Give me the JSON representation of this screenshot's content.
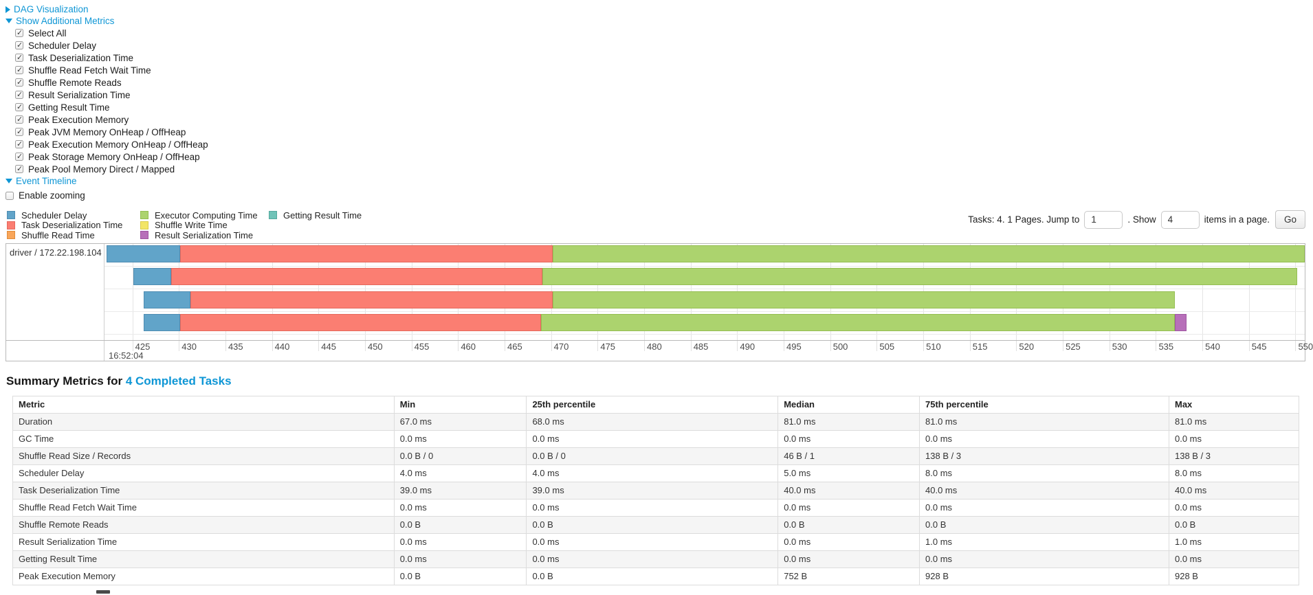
{
  "colors": {
    "link": "#0e96d5",
    "scheduler_delay": "#61a4c9",
    "scheduler_delay_border": "#4e8cb2",
    "task_deserialization": "#fb7e72",
    "task_deserialization_border": "#e5685c",
    "shuffle_read": "#f9a65a",
    "shuffle_read_border": "#e08c3c",
    "executor_computing": "#acd36e",
    "executor_computing_border": "#94be52",
    "shuffle_write": "#f2e566",
    "shuffle_write_border": "#d9cc4c",
    "result_serialization": "#b76fb9",
    "result_serialization_border": "#9f55a1",
    "getting_result": "#70c3b8",
    "getting_result_border": "#54a99e"
  },
  "sections": {
    "dag": {
      "label": "DAG Visualization",
      "expanded": false
    },
    "metrics": {
      "label": "Show Additional Metrics",
      "expanded": true
    },
    "timeline": {
      "label": "Event Timeline",
      "expanded": true
    }
  },
  "metrics_panel": {
    "checkboxes": [
      {
        "label": "Select All",
        "checked": true
      },
      {
        "label": "Scheduler Delay",
        "checked": true
      },
      {
        "label": "Task Deserialization Time",
        "checked": true
      },
      {
        "label": "Shuffle Read Fetch Wait Time",
        "checked": true
      },
      {
        "label": "Shuffle Remote Reads",
        "checked": true
      },
      {
        "label": "Result Serialization Time",
        "checked": true
      },
      {
        "label": "Getting Result Time",
        "checked": true
      },
      {
        "label": "Peak Execution Memory",
        "checked": true
      },
      {
        "label": "Peak JVM Memory OnHeap / OffHeap",
        "checked": true
      },
      {
        "label": "Peak Execution Memory OnHeap / OffHeap",
        "checked": true
      },
      {
        "label": "Peak Storage Memory OnHeap / OffHeap",
        "checked": true
      },
      {
        "label": "Peak Pool Memory Direct / Mapped",
        "checked": true
      }
    ]
  },
  "timeline": {
    "enable_zooming": {
      "label": "Enable zooming",
      "checked": false
    },
    "legend_columns": [
      [
        {
          "label": "Scheduler Delay",
          "color_key": "scheduler_delay"
        },
        {
          "label": "Task Deserialization Time",
          "color_key": "task_deserialization"
        },
        {
          "label": "Shuffle Read Time",
          "color_key": "shuffle_read"
        }
      ],
      [
        {
          "label": "Executor Computing Time",
          "color_key": "executor_computing"
        },
        {
          "label": "Shuffle Write Time",
          "color_key": "shuffle_write"
        },
        {
          "label": "Result Serialization Time",
          "color_key": "result_serialization"
        }
      ],
      [
        {
          "label": "Getting Result Time",
          "color_key": "getting_result"
        }
      ]
    ],
    "pagination": {
      "tasks_text": "Tasks: 4. 1 Pages. Jump to",
      "jump_value": "1",
      "show_text": ". Show",
      "show_value": "4",
      "items_text": "items in a page.",
      "go_label": "Go"
    },
    "chart": {
      "group_label": "driver / 172.22.198.104",
      "major_label": "16:52:04",
      "axis_start": 422,
      "axis_end": 551,
      "first_tick": 425,
      "last_tick": 550,
      "tick_step": 5,
      "tasks": [
        {
          "segments": [
            {
              "type": "scheduler_delay",
              "start": 422.2,
              "end": 430.1
            },
            {
              "type": "task_deserialization",
              "start": 430.1,
              "end": 470.2
            },
            {
              "type": "executor_computing",
              "start": 470.2,
              "end": 551.0
            }
          ]
        },
        {
          "segments": [
            {
              "type": "scheduler_delay",
              "start": 425.1,
              "end": 429.2
            },
            {
              "type": "task_deserialization",
              "start": 429.2,
              "end": 469.1
            },
            {
              "type": "executor_computing",
              "start": 469.1,
              "end": 550.2
            }
          ]
        },
        {
          "segments": [
            {
              "type": "scheduler_delay",
              "start": 426.2,
              "end": 431.2
            },
            {
              "type": "task_deserialization",
              "start": 431.2,
              "end": 470.2
            },
            {
              "type": "executor_computing",
              "start": 470.2,
              "end": 537.0
            }
          ]
        },
        {
          "segments": [
            {
              "type": "scheduler_delay",
              "start": 426.2,
              "end": 430.1
            },
            {
              "type": "task_deserialization",
              "start": 430.1,
              "end": 468.9
            },
            {
              "type": "executor_computing",
              "start": 468.9,
              "end": 537.0
            },
            {
              "type": "result_serialization",
              "start": 537.0,
              "end": 538.3
            }
          ]
        }
      ]
    }
  },
  "summary": {
    "title_prefix": "Summary Metrics for ",
    "title_link": "4 Completed Tasks",
    "table": {
      "headers": [
        "Metric",
        "Min",
        "25th percentile",
        "Median",
        "75th percentile",
        "Max"
      ],
      "rows": [
        [
          "Duration",
          "67.0 ms",
          "68.0 ms",
          "81.0 ms",
          "81.0 ms",
          "81.0 ms"
        ],
        [
          "GC Time",
          "0.0 ms",
          "0.0 ms",
          "0.0 ms",
          "0.0 ms",
          "0.0 ms"
        ],
        [
          "Shuffle Read Size / Records",
          "0.0 B / 0",
          "0.0 B / 0",
          "46 B / 1",
          "138 B / 3",
          "138 B / 3"
        ],
        [
          "Scheduler Delay",
          "4.0 ms",
          "4.0 ms",
          "5.0 ms",
          "8.0 ms",
          "8.0 ms"
        ],
        [
          "Task Deserialization Time",
          "39.0 ms",
          "39.0 ms",
          "40.0 ms",
          "40.0 ms",
          "40.0 ms"
        ],
        [
          "Shuffle Read Fetch Wait Time",
          "0.0 ms",
          "0.0 ms",
          "0.0 ms",
          "0.0 ms",
          "0.0 ms"
        ],
        [
          "Shuffle Remote Reads",
          "0.0 B",
          "0.0 B",
          "0.0 B",
          "0.0 B",
          "0.0 B"
        ],
        [
          "Result Serialization Time",
          "0.0 ms",
          "0.0 ms",
          "0.0 ms",
          "1.0 ms",
          "1.0 ms"
        ],
        [
          "Getting Result Time",
          "0.0 ms",
          "0.0 ms",
          "0.0 ms",
          "0.0 ms",
          "0.0 ms"
        ],
        [
          "Peak Execution Memory",
          "0.0 B",
          "0.0 B",
          "752 B",
          "928 B",
          "928 B"
        ]
      ]
    }
  }
}
